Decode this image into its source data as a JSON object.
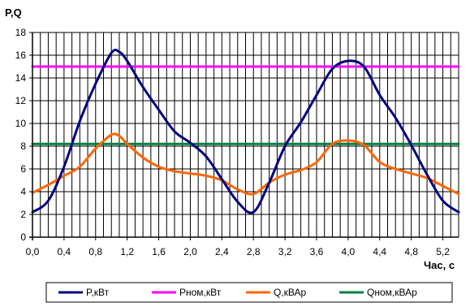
{
  "chart_data": {
    "type": "line",
    "ylabel": "P,Q",
    "xlabel": "Час, с",
    "xlim": [
      0.0,
      5.4
    ],
    "ylim": [
      0,
      18
    ],
    "xticks": [
      "0,0",
      "0,4",
      "0,8",
      "1,2",
      "1,6",
      "2,0",
      "2,4",
      "2,8",
      "3,2",
      "3,6",
      "4,0",
      "4,4",
      "4,8",
      "5,2"
    ],
    "yticks": [
      "0",
      "2",
      "4",
      "6",
      "8",
      "10",
      "12",
      "14",
      "16",
      "18"
    ],
    "grid": true,
    "legend_position": "bottom",
    "series": [
      {
        "name": "P,кВт",
        "color": "#000080",
        "x": [
          0.0,
          0.2,
          0.4,
          0.6,
          0.8,
          1.0,
          1.1,
          1.2,
          1.4,
          1.6,
          1.8,
          2.0,
          2.2,
          2.4,
          2.6,
          2.8,
          3.0,
          3.2,
          3.4,
          3.6,
          3.8,
          4.0,
          4.2,
          4.4,
          4.6,
          4.8,
          5.0,
          5.2,
          5.4
        ],
        "values": [
          2.2,
          3.2,
          6.2,
          10.2,
          13.5,
          16.2,
          16.3,
          15.5,
          13.2,
          11.2,
          9.3,
          8.3,
          7.1,
          5.1,
          3.1,
          2.2,
          4.8,
          8.0,
          10.1,
          12.5,
          14.8,
          15.5,
          15.0,
          12.5,
          10.5,
          8.1,
          5.5,
          3.2,
          2.2
        ]
      },
      {
        "name": "Pном,кВт",
        "color": "#ff00ff",
        "x": [
          0.0,
          5.4
        ],
        "values": [
          15,
          15
        ]
      },
      {
        "name": "Q,кВАр",
        "color": "#ff6600",
        "x": [
          0.0,
          0.2,
          0.4,
          0.6,
          0.8,
          1.0,
          1.1,
          1.2,
          1.4,
          1.6,
          1.8,
          2.0,
          2.2,
          2.4,
          2.6,
          2.8,
          3.0,
          3.2,
          3.4,
          3.6,
          3.8,
          4.0,
          4.2,
          4.4,
          4.6,
          4.8,
          5.0,
          5.2,
          5.4
        ],
        "values": [
          3.9,
          4.6,
          5.4,
          6.2,
          7.8,
          9.0,
          8.9,
          8.2,
          7.0,
          6.2,
          5.8,
          5.6,
          5.4,
          5.0,
          4.2,
          3.8,
          4.8,
          5.5,
          5.9,
          6.6,
          8.2,
          8.5,
          8.1,
          6.6,
          6.0,
          5.6,
          5.2,
          4.5,
          3.8
        ]
      },
      {
        "name": "Qном,кВАр",
        "color": "#008040",
        "x": [
          0.0,
          5.4
        ],
        "values": [
          8.2,
          8.2
        ]
      }
    ]
  }
}
